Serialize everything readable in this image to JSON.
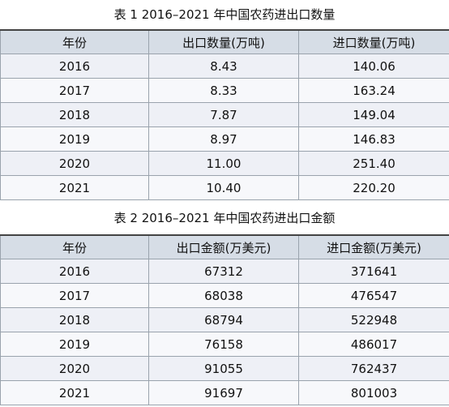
{
  "tables": [
    {
      "title": "表 1  2016–2021 年中国农药进出口数量",
      "header": [
        "年份",
        "出口数量(万吨)",
        "进口数量(万吨)"
      ],
      "rows": [
        [
          "2016",
          "8.43",
          "140.06"
        ],
        [
          "2017",
          "8.33",
          "163.24"
        ],
        [
          "2018",
          "7.87",
          "149.04"
        ],
        [
          "2019",
          "8.97",
          "146.83"
        ],
        [
          "2020",
          "11.00",
          "251.40"
        ],
        [
          "2021",
          "10.40",
          "220.20"
        ]
      ]
    },
    {
      "title": "表 2  2016–2021 年中国农药进出口金额",
      "header": [
        "年份",
        "出口金额(万美元)",
        "进口金额(万美元)"
      ],
      "rows": [
        [
          "2016",
          "67312",
          "371641"
        ],
        [
          "2017",
          "68038",
          "476547"
        ],
        [
          "2018",
          "68794",
          "522948"
        ],
        [
          "2019",
          "76158",
          "486017"
        ],
        [
          "2020",
          "91055",
          "762437"
        ],
        [
          "2021",
          "91697",
          "801003"
        ]
      ]
    }
  ]
}
